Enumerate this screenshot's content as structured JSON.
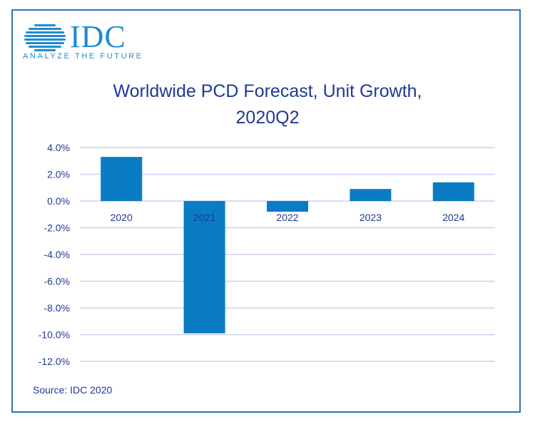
{
  "logo": {
    "brand": "IDC",
    "tagline": "ANALYZE THE FUTURE",
    "brand_color": "#1f8bd0"
  },
  "colors": {
    "bar": "#0a7cc4",
    "grid": "#c9d3f2",
    "text": "#1f3a93",
    "frame": "#2e74b5"
  },
  "source": "Source: IDC 2020",
  "chart_data": {
    "type": "bar",
    "title_line1": "Worldwide PCD Forecast, Unit Growth,",
    "title_line2": "2020Q2",
    "categories": [
      "2020",
      "2021",
      "2022",
      "2023",
      "2024"
    ],
    "values": [
      3.3,
      -9.9,
      -0.8,
      0.9,
      1.4
    ],
    "unit": "%",
    "ylim": [
      -12,
      4
    ],
    "yticks": [
      4,
      2,
      0,
      -2,
      -4,
      -6,
      -8,
      -10,
      -12
    ],
    "ytick_labels": [
      "4.0%",
      "2.0%",
      "0.0%",
      "-2.0%",
      "-4.0%",
      "-6.0%",
      "-8.0%",
      "-10.0%",
      "-12.0%"
    ],
    "grid": true,
    "legend": false
  }
}
